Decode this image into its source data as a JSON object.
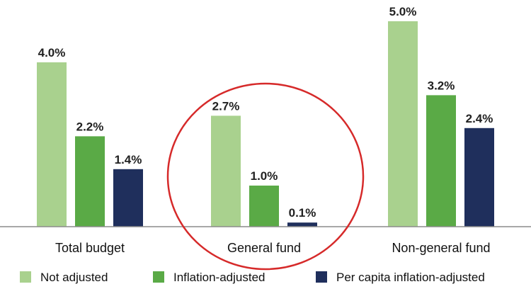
{
  "chart_data": {
    "type": "bar",
    "categories": [
      "Total budget",
      "General fund",
      "Non-general fund"
    ],
    "series": [
      {
        "name": "Not adjusted",
        "values": [
          4.0,
          2.7,
          5.0
        ],
        "labels": [
          "4.0%",
          "2.7%",
          "5.0%"
        ],
        "color": "#a9d18e"
      },
      {
        "name": "Inflation-adjusted",
        "values": [
          2.2,
          1.0,
          3.2
        ],
        "labels": [
          "2.2%",
          "1.0%",
          "3.2%"
        ],
        "color": "#5aaa46"
      },
      {
        "name": "Per capita inflation-adjusted",
        "values": [
          1.4,
          0.1,
          2.4
        ],
        "labels": [
          "1.4%",
          "0.1%",
          "2.4%"
        ],
        "color": "#1f2f5c"
      }
    ],
    "ylim": [
      0,
      5.0
    ],
    "grid": false,
    "legend_position": "bottom",
    "highlight": {
      "category": "General fund",
      "shape": "circle",
      "color": "#d62a2a"
    }
  }
}
